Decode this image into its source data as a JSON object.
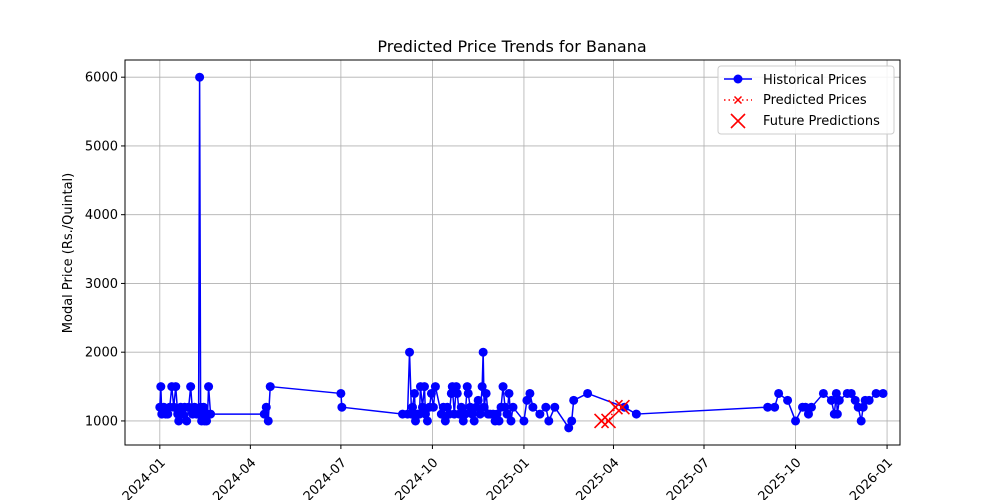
{
  "chart_data": {
    "type": "line",
    "title": "Predicted Price Trends for Banana",
    "xlabel": "",
    "ylabel": "Modal Price (Rs./Quintal)",
    "xlim": [
      "2023-11-27",
      "2026-01-14"
    ],
    "ylim": [
      650,
      6250
    ],
    "grid": true,
    "legend_position": "top-right",
    "x_ticks": [
      "2024-01",
      "2024-04",
      "2024-07",
      "2024-10",
      "2025-01",
      "2025-04",
      "2025-07",
      "2025-10",
      "2026-01"
    ],
    "y_ticks": [
      1000,
      2000,
      3000,
      4000,
      5000,
      6000
    ],
    "series": [
      {
        "name": "Historical Prices",
        "color": "#0000ff",
        "style": "solid-line-circle-markers",
        "points": [
          [
            "2024-01-01",
            1200
          ],
          [
            "2024-01-02",
            1500
          ],
          [
            "2024-01-03",
            1100
          ],
          [
            "2024-01-05",
            1200
          ],
          [
            "2024-01-07",
            1100
          ],
          [
            "2024-01-09",
            1100
          ],
          [
            "2024-01-11",
            1200
          ],
          [
            "2024-01-13",
            1500
          ],
          [
            "2024-01-15",
            1200
          ],
          [
            "2024-01-17",
            1500
          ],
          [
            "2024-01-19",
            1100
          ],
          [
            "2024-01-20",
            1000
          ],
          [
            "2024-01-22",
            1200
          ],
          [
            "2024-01-24",
            1100
          ],
          [
            "2024-01-26",
            1200
          ],
          [
            "2024-01-28",
            1000
          ],
          [
            "2024-01-30",
            1200
          ],
          [
            "2024-02-01",
            1500
          ],
          [
            "2024-02-03",
            1100
          ],
          [
            "2024-02-05",
            1200
          ],
          [
            "2024-02-07",
            1100
          ],
          [
            "2024-02-09",
            1100
          ],
          [
            "2024-02-10",
            6000
          ],
          [
            "2024-02-11",
            1200
          ],
          [
            "2024-02-12",
            1000
          ],
          [
            "2024-02-13",
            1100
          ],
          [
            "2024-02-14",
            1200
          ],
          [
            "2024-02-15",
            1000
          ],
          [
            "2024-02-17",
            1000
          ],
          [
            "2024-02-18",
            1100
          ],
          [
            "2024-02-19",
            1500
          ],
          [
            "2024-02-21",
            1100
          ],
          [
            "2024-04-15",
            1100
          ],
          [
            "2024-04-17",
            1200
          ],
          [
            "2024-04-19",
            1000
          ],
          [
            "2024-04-21",
            1500
          ],
          [
            "2024-07-01",
            1400
          ],
          [
            "2024-07-02",
            1200
          ],
          [
            "2024-09-01",
            1100
          ],
          [
            "2024-09-06",
            1100
          ],
          [
            "2024-09-08",
            2000
          ],
          [
            "2024-09-10",
            1100
          ],
          [
            "2024-09-11",
            1200
          ],
          [
            "2024-09-13",
            1400
          ],
          [
            "2024-09-14",
            1000
          ],
          [
            "2024-09-16",
            1100
          ],
          [
            "2024-09-18",
            1100
          ],
          [
            "2024-09-19",
            1500
          ],
          [
            "2024-09-21",
            1200
          ],
          [
            "2024-09-23",
            1500
          ],
          [
            "2024-09-24",
            1100
          ],
          [
            "2024-09-26",
            1000
          ],
          [
            "2024-09-28",
            1200
          ],
          [
            "2024-09-30",
            1400
          ],
          [
            "2024-10-02",
            1200
          ],
          [
            "2024-10-04",
            1500
          ],
          [
            "2024-10-10",
            1100
          ],
          [
            "2024-10-12",
            1200
          ],
          [
            "2024-10-14",
            1000
          ],
          [
            "2024-10-16",
            1200
          ],
          [
            "2024-10-18",
            1100
          ],
          [
            "2024-10-20",
            1400
          ],
          [
            "2024-10-21",
            1500
          ],
          [
            "2024-10-23",
            1100
          ],
          [
            "2024-10-25",
            1500
          ],
          [
            "2024-10-26",
            1400
          ],
          [
            "2024-10-28",
            1100
          ],
          [
            "2024-10-30",
            1200
          ],
          [
            "2024-11-01",
            1000
          ],
          [
            "2024-11-03",
            1100
          ],
          [
            "2024-11-05",
            1500
          ],
          [
            "2024-11-06",
            1400
          ],
          [
            "2024-11-08",
            1200
          ],
          [
            "2024-11-10",
            1100
          ],
          [
            "2024-11-12",
            1000
          ],
          [
            "2024-11-14",
            1200
          ],
          [
            "2024-11-16",
            1300
          ],
          [
            "2024-11-18",
            1100
          ],
          [
            "2024-11-20",
            1500
          ],
          [
            "2024-11-21",
            2000
          ],
          [
            "2024-11-22",
            1200
          ],
          [
            "2024-11-24",
            1400
          ],
          [
            "2024-11-26",
            1100
          ],
          [
            "2024-11-28",
            1100
          ],
          [
            "2024-12-01",
            1100
          ],
          [
            "2024-12-03",
            1000
          ],
          [
            "2024-12-05",
            1100
          ],
          [
            "2024-12-07",
            1000
          ],
          [
            "2024-12-09",
            1200
          ],
          [
            "2024-12-11",
            1500
          ],
          [
            "2024-12-13",
            1200
          ],
          [
            "2024-12-15",
            1100
          ],
          [
            "2024-12-17",
            1400
          ],
          [
            "2024-12-19",
            1000
          ],
          [
            "2024-12-21",
            1200
          ],
          [
            "2025-01-01",
            1000
          ],
          [
            "2025-01-04",
            1300
          ],
          [
            "2025-01-07",
            1400
          ],
          [
            "2025-01-10",
            1200
          ],
          [
            "2025-01-17",
            1100
          ],
          [
            "2025-01-23",
            1200
          ],
          [
            "2025-01-26",
            1000
          ],
          [
            "2025-02-01",
            1200
          ],
          [
            "2025-02-15",
            900
          ],
          [
            "2025-02-18",
            1000
          ],
          [
            "2025-02-20",
            1300
          ],
          [
            "2025-03-06",
            1400
          ],
          [
            "2025-04-12",
            1200
          ],
          [
            "2025-04-24",
            1100
          ],
          [
            "2025-09-03",
            1200
          ],
          [
            "2025-09-10",
            1200
          ],
          [
            "2025-09-14",
            1400
          ],
          [
            "2025-09-23",
            1300
          ],
          [
            "2025-10-01",
            1000
          ],
          [
            "2025-10-08",
            1200
          ],
          [
            "2025-10-11",
            1200
          ],
          [
            "2025-10-14",
            1100
          ],
          [
            "2025-10-17",
            1200
          ],
          [
            "2025-10-29",
            1400
          ],
          [
            "2025-11-06",
            1300
          ],
          [
            "2025-11-09",
            1100
          ],
          [
            "2025-11-11",
            1400
          ],
          [
            "2025-11-12",
            1100
          ],
          [
            "2025-11-14",
            1300
          ],
          [
            "2025-11-22",
            1400
          ],
          [
            "2025-11-26",
            1400
          ],
          [
            "2025-11-30",
            1300
          ],
          [
            "2025-12-03",
            1200
          ],
          [
            "2025-12-06",
            1000
          ],
          [
            "2025-12-08",
            1200
          ],
          [
            "2025-12-10",
            1300
          ],
          [
            "2025-12-14",
            1300
          ],
          [
            "2025-12-21",
            1400
          ],
          [
            "2025-12-28",
            1400
          ]
        ]
      },
      {
        "name": "Predicted Prices",
        "color": "#ff0000",
        "style": "dotted-line-x-markers",
        "points": [
          [
            "2025-03-20",
            1000
          ],
          [
            "2025-03-27",
            1000
          ],
          [
            "2025-04-03",
            1200
          ],
          [
            "2025-04-10",
            1200
          ]
        ]
      },
      {
        "name": "Future Predictions",
        "color": "#ff0000",
        "style": "large-x-markers",
        "points": [
          [
            "2025-03-20",
            1000
          ],
          [
            "2025-03-27",
            1000
          ],
          [
            "2025-04-03",
            1200
          ],
          [
            "2025-04-10",
            1200
          ]
        ]
      }
    ]
  }
}
